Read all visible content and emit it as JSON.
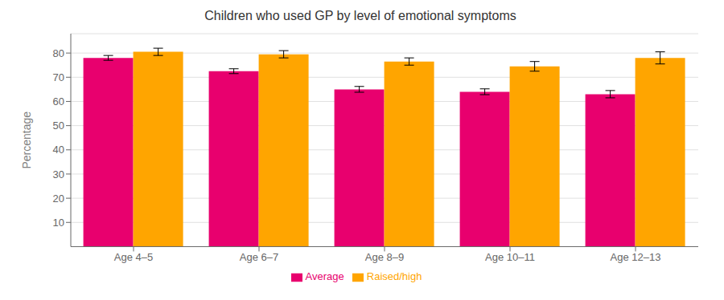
{
  "chart_data": {
    "type": "bar",
    "title": "Children who used GP by level of emotional symptoms",
    "ylabel": "Percentage",
    "categories": [
      "Age 4–5",
      "Age 6–7",
      "Age 8–9",
      "Age 10–11",
      "Age 12–13"
    ],
    "series": [
      {
        "name": "Average",
        "color": "#E8006E",
        "values": [
          78,
          72.5,
          65,
          64,
          63
        ],
        "errors": [
          1.0,
          1.0,
          1.2,
          1.2,
          1.5
        ]
      },
      {
        "name": "Raised/high",
        "color": "#FFA500",
        "values": [
          80.5,
          79.5,
          76.5,
          74.5,
          78
        ],
        "errors": [
          1.5,
          1.5,
          1.5,
          2.0,
          2.5
        ]
      }
    ],
    "ylim": [
      0,
      88
    ],
    "yticks": [
      10,
      20,
      30,
      40,
      50,
      60,
      70,
      80
    ],
    "grid": true,
    "legend": "bottom"
  }
}
